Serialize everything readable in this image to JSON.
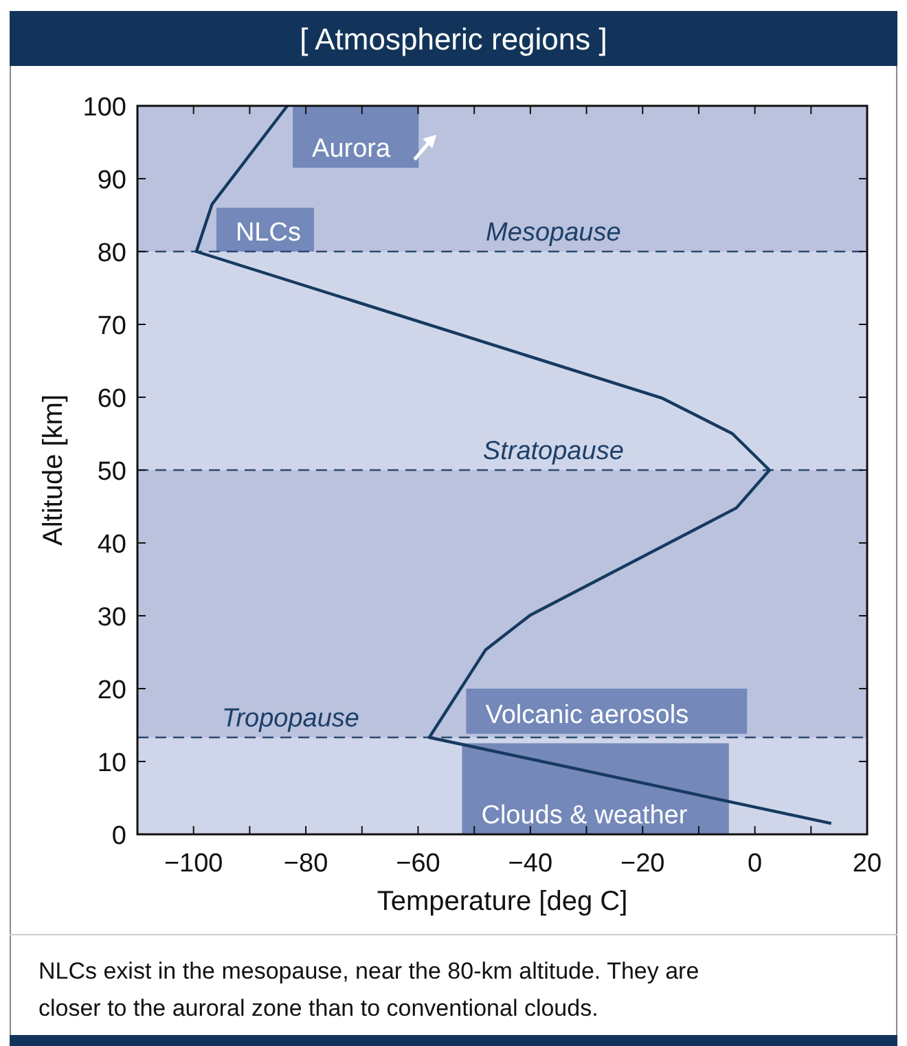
{
  "chart_data": {
    "type": "line",
    "title": "[ Atmospheric regions ]",
    "xlabel": "Temperature [deg C]",
    "ylabel": "Altitude [km]",
    "x": [
      13.6,
      -58,
      -48,
      -40,
      -3.3,
      2.6,
      -4,
      -16.6,
      -99.5,
      -96.7,
      -83.3
    ],
    "series": [
      {
        "color": "#163a60",
        "values": [
          1.5,
          13.3,
          25.3,
          30.1,
          44.8,
          50,
          55,
          59.9,
          80,
          86.5,
          100
        ]
      }
    ],
    "xlim": [
      -110,
      20
    ],
    "ylim": [
      0,
      100
    ],
    "xticks": [
      {
        "value": -110,
        "label": null
      },
      -100,
      {
        "value": -90,
        "label": null
      },
      -80,
      {
        "value": -70,
        "label": null
      },
      -60,
      {
        "value": -50,
        "label": null
      },
      -40,
      {
        "value": -30,
        "label": null
      },
      -20,
      {
        "value": -10,
        "label": null
      },
      0,
      {
        "value": 10,
        "label": null
      },
      20
    ],
    "yticks": [
      0,
      10,
      20,
      30,
      40,
      50,
      60,
      70,
      80,
      90,
      100
    ],
    "grid": false,
    "marker": "none",
    "line_style": "solid",
    "bands": [
      {
        "axis": "y",
        "from": 0,
        "to": 13.3,
        "color": "#d0d6e9"
      },
      {
        "axis": "y",
        "from": 13.3,
        "to": 50,
        "color": "#bac2dd"
      },
      {
        "axis": "y",
        "from": 50,
        "to": 80,
        "color": "#d0d6e9"
      },
      {
        "axis": "y",
        "from": 80,
        "to": 100,
        "color": "#bac2dd"
      },
      {
        "axis": "y",
        "from": 91.5,
        "to": 100,
        "label": "Aurora",
        "color": "#7488b9"
      },
      {
        "axis": "y",
        "from": 80,
        "to": 86,
        "label": "NLCs",
        "color": "#7488b9"
      },
      {
        "axis": "y",
        "from": 13.8,
        "to": 20,
        "label": "Volcanic aerosols",
        "color": "#7488b9"
      },
      {
        "axis": "y",
        "from": 0,
        "to": 12.5,
        "label": "Clouds & weather",
        "color": "#7488b9"
      }
    ],
    "ref_lines": [
      {
        "axis": "y",
        "value": 13.3,
        "label": "Tropopause",
        "color": "#2c4a70",
        "line_style": "dashed"
      },
      {
        "axis": "y",
        "value": 50,
        "label": "Stratopause",
        "color": "#2c4a70",
        "line_style": "dashed"
      },
      {
        "axis": "y",
        "value": 80,
        "label": "Mesopause",
        "color": "#2c4a70",
        "line_style": "dashed"
      }
    ],
    "annotations": [
      "NLCs exist in the mesopause, near the 80-km altitude. They are closer to the auroral zone than to conventional clouds."
    ]
  }
}
